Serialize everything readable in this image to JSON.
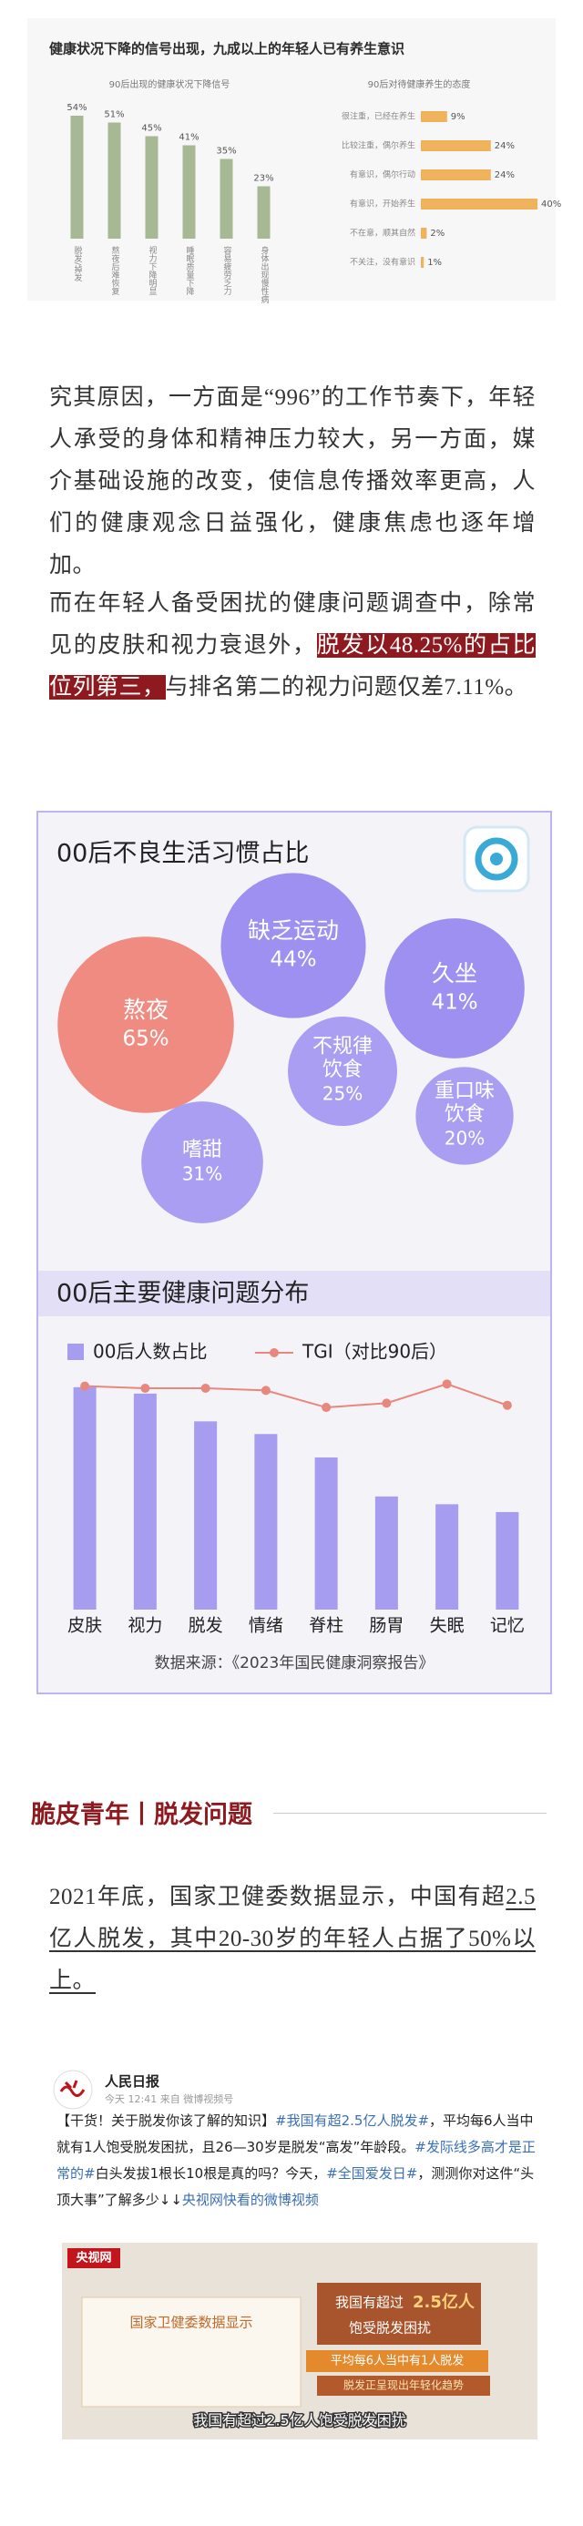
{
  "figure": {
    "title": "健康状况下降的信号出现，九成以上的年轻人已有养生意识"
  },
  "chart_data": [
    {
      "type": "bar",
      "subtitle": "90后出现的健康状况下降信号",
      "categories": [
        "脱发/掉发",
        "熬夜后难恢复",
        "视力下降明显",
        "睡眠质量下降",
        "容易疲劳乏力",
        "身体出现慢性病"
      ],
      "values": [
        54,
        51,
        45,
        41,
        35,
        23
      ],
      "value_labels": [
        "54%",
        "51%",
        "45%",
        "41%",
        "35%",
        "23%"
      ],
      "color": "#a7b994",
      "ylim": [
        0,
        60
      ]
    },
    {
      "type": "hbar",
      "subtitle": "90后对待健康养生的态度",
      "categories": [
        "很注重，已经在养生",
        "比较注重，偶尔养生",
        "有意识，偶尔行动",
        "有意识，开始养生",
        "不在意，顺其自然",
        "不关注，没有意识"
      ],
      "values": [
        9,
        24,
        24,
        40,
        2,
        1
      ],
      "value_labels": [
        "9%",
        "24%",
        "24%",
        "40%",
        "2%",
        "1%"
      ],
      "color": "#f0b25a",
      "xlim": [
        0,
        40
      ]
    },
    {
      "type": "bubble",
      "title": "00后不良生活习惯占比",
      "categories": [
        "熬夜",
        "缺乏运动",
        "久坐",
        "不规律饮食",
        "重口味饮食",
        "嗜甜"
      ],
      "values": [
        65,
        44,
        41,
        25,
        20,
        31
      ],
      "value_labels": [
        "65%",
        "44%",
        "41%",
        "25%",
        "20%",
        "31%"
      ],
      "colors": [
        "#f08b82",
        "#9d90f0",
        "#9d90f0",
        "#a99ef2",
        "#a99ef2",
        "#a99ef2"
      ]
    },
    {
      "type": "bar-line",
      "title": "00后主要健康问题分布",
      "categories": [
        "皮肤",
        "视力",
        "脱发",
        "情绪",
        "脊柱",
        "肠胃",
        "失眠",
        "记忆"
      ],
      "series": [
        {
          "name": "00后人数占比",
          "color": "#a79df0",
          "values": [
            57,
            55.36,
            48.25,
            45,
            39,
            29,
            27,
            25
          ]
        },
        {
          "name": "TGI（对比90后）",
          "color": "#e8877d",
          "axis": "y2",
          "values": [
            105,
            104,
            104,
            103,
            95,
            97,
            106,
            96
          ]
        }
      ],
      "ylim": [
        0,
        60
      ],
      "y2lim": [
        0,
        110
      ],
      "source": "数据来源：《2023年国民健康洞察报告》"
    }
  ],
  "article": {
    "paragraph_1": "究其原因，一方面是“996”的工作节奏下，年轻人承受的身体和精神压力较大，另一方面，媒介基础设施的改变，使信息传播效率更高，人们的健康观念日益强化，健康焦虑也逐年增加。",
    "paragraph_2": [
      "而在年轻人备受困扰的健康问题调查中，除常见的皮肤和视力衰退外，",
      "脱发以48.25%的占比位列第三，",
      "与排名第二的视力问题仅差7.11%。"
    ],
    "section_heading": "脆皮青年丨脱发问题",
    "paragraph_3": [
      "2021年底，国家卫健委数据显示，中国有超",
      "2.5亿人脱发，其中20-30岁的年轻人占据了50%以上。"
    ]
  },
  "weibo": {
    "author": "人民日报",
    "meta": "今天 12:41 来自 微博视频号",
    "body": [
      "【干货！关于脱发你该了解的知识】",
      "#我国有超2.5亿人脱发#",
      "，平均每6人当中就有1人饱受脱发困扰，且26—30岁是脱发“高发”年龄段。",
      "#发际线多高才是正常的#",
      "白头发拔1根长10根是真的吗？今天，",
      "#全国爱发日#",
      "，测测你对这件“头顶大事”了解多少↓↓"
    ],
    "video_link": "央视网快看的微博视频",
    "video": {
      "channel": "央视网",
      "card": "国家卫健委数据显示",
      "headline_1": "我国有超过",
      "headline_number": "2.5亿人",
      "headline_2": "饱受脱发困扰",
      "band_1": "平均每6人当中有1人脱发",
      "band_2": "脱发正呈现出年轻化趋势",
      "caption": "我国有超过2.5亿人饱受脱发困扰"
    }
  }
}
